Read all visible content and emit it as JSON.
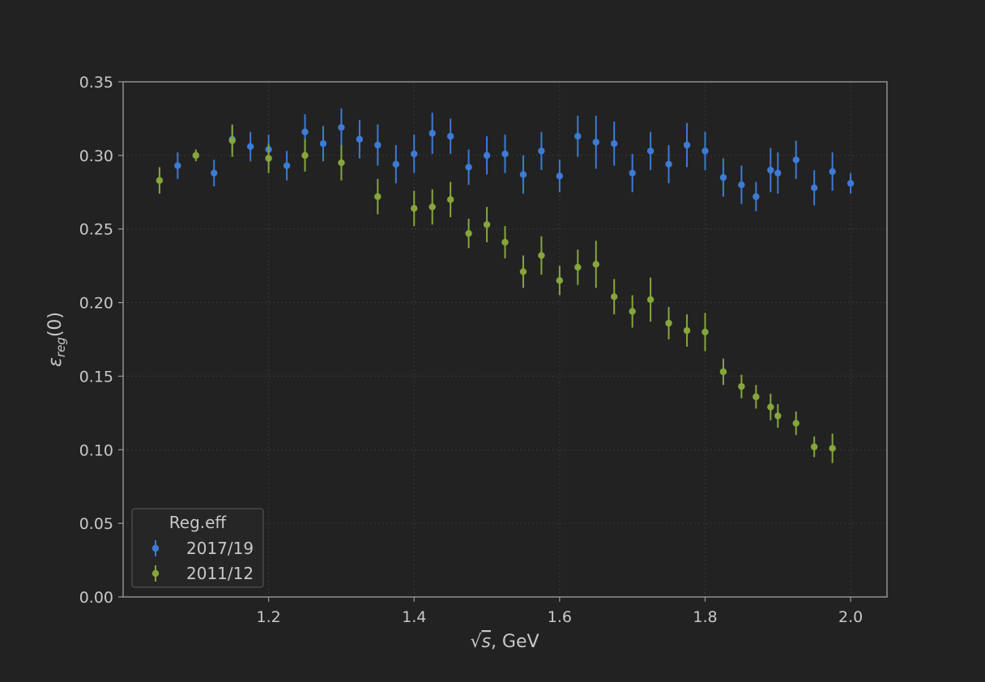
{
  "chart_data": {
    "type": "scatter",
    "title": "",
    "xlabel_prefix": "√",
    "xlabel_var": "s",
    "xlabel_suffix": ", GeV",
    "ylabel_main": "ε",
    "ylabel_sub": "reg",
    "ylabel_suffix": "(0)",
    "xlim": [
      1.0,
      2.05
    ],
    "ylim": [
      0.0,
      0.35
    ],
    "xticks": [
      "1.2",
      "1.4",
      "1.6",
      "1.8",
      "2.0"
    ],
    "yticks": [
      "0.00",
      "0.05",
      "0.10",
      "0.15",
      "0.20",
      "0.25",
      "0.30",
      "0.35"
    ],
    "grid": true,
    "legend": {
      "title": "Reg.eff",
      "placement": "lower-left"
    },
    "series": [
      {
        "name": "2017/19",
        "color": "#3d7bd4",
        "points": [
          {
            "x": 1.075,
            "y": 0.293,
            "err": 0.009
          },
          {
            "x": 1.125,
            "y": 0.288,
            "err": 0.009
          },
          {
            "x": 1.15,
            "y": 0.311,
            "err": 0.009
          },
          {
            "x": 1.175,
            "y": 0.306,
            "err": 0.01
          },
          {
            "x": 1.2,
            "y": 0.304,
            "err": 0.01
          },
          {
            "x": 1.225,
            "y": 0.293,
            "err": 0.01
          },
          {
            "x": 1.25,
            "y": 0.316,
            "err": 0.012
          },
          {
            "x": 1.275,
            "y": 0.308,
            "err": 0.012
          },
          {
            "x": 1.3,
            "y": 0.319,
            "err": 0.013
          },
          {
            "x": 1.325,
            "y": 0.311,
            "err": 0.013
          },
          {
            "x": 1.35,
            "y": 0.307,
            "err": 0.014
          },
          {
            "x": 1.375,
            "y": 0.294,
            "err": 0.013
          },
          {
            "x": 1.4,
            "y": 0.301,
            "err": 0.013
          },
          {
            "x": 1.425,
            "y": 0.315,
            "err": 0.014
          },
          {
            "x": 1.45,
            "y": 0.313,
            "err": 0.012
          },
          {
            "x": 1.475,
            "y": 0.292,
            "err": 0.012
          },
          {
            "x": 1.5,
            "y": 0.3,
            "err": 0.013
          },
          {
            "x": 1.525,
            "y": 0.301,
            "err": 0.013
          },
          {
            "x": 1.55,
            "y": 0.287,
            "err": 0.013
          },
          {
            "x": 1.575,
            "y": 0.303,
            "err": 0.013
          },
          {
            "x": 1.6,
            "y": 0.286,
            "err": 0.011
          },
          {
            "x": 1.625,
            "y": 0.313,
            "err": 0.014
          },
          {
            "x": 1.65,
            "y": 0.309,
            "err": 0.018
          },
          {
            "x": 1.675,
            "y": 0.308,
            "err": 0.015
          },
          {
            "x": 1.7,
            "y": 0.288,
            "err": 0.013
          },
          {
            "x": 1.725,
            "y": 0.303,
            "err": 0.013
          },
          {
            "x": 1.75,
            "y": 0.294,
            "err": 0.013
          },
          {
            "x": 1.775,
            "y": 0.307,
            "err": 0.015
          },
          {
            "x": 1.8,
            "y": 0.303,
            "err": 0.013
          },
          {
            "x": 1.825,
            "y": 0.285,
            "err": 0.013
          },
          {
            "x": 1.85,
            "y": 0.28,
            "err": 0.013
          },
          {
            "x": 1.87,
            "y": 0.272,
            "err": 0.01
          },
          {
            "x": 1.89,
            "y": 0.29,
            "err": 0.015
          },
          {
            "x": 1.9,
            "y": 0.288,
            "err": 0.014
          },
          {
            "x": 1.925,
            "y": 0.297,
            "err": 0.013
          },
          {
            "x": 1.95,
            "y": 0.278,
            "err": 0.012
          },
          {
            "x": 1.975,
            "y": 0.289,
            "err": 0.013
          },
          {
            "x": 2.0,
            "y": 0.281,
            "err": 0.007
          }
        ]
      },
      {
        "name": "2011/12",
        "color": "#86a63c",
        "points": [
          {
            "x": 1.05,
            "y": 0.283,
            "err": 0.009
          },
          {
            "x": 1.1,
            "y": 0.3,
            "err": 0.004
          },
          {
            "x": 1.15,
            "y": 0.31,
            "err": 0.011
          },
          {
            "x": 1.2,
            "y": 0.298,
            "err": 0.01
          },
          {
            "x": 1.25,
            "y": 0.3,
            "err": 0.011
          },
          {
            "x": 1.3,
            "y": 0.295,
            "err": 0.012
          },
          {
            "x": 1.35,
            "y": 0.272,
            "err": 0.012
          },
          {
            "x": 1.4,
            "y": 0.264,
            "err": 0.012
          },
          {
            "x": 1.425,
            "y": 0.265,
            "err": 0.012
          },
          {
            "x": 1.45,
            "y": 0.27,
            "err": 0.012
          },
          {
            "x": 1.475,
            "y": 0.247,
            "err": 0.01
          },
          {
            "x": 1.5,
            "y": 0.253,
            "err": 0.012
          },
          {
            "x": 1.525,
            "y": 0.241,
            "err": 0.011
          },
          {
            "x": 1.55,
            "y": 0.221,
            "err": 0.011
          },
          {
            "x": 1.575,
            "y": 0.232,
            "err": 0.013
          },
          {
            "x": 1.6,
            "y": 0.215,
            "err": 0.01
          },
          {
            "x": 1.625,
            "y": 0.224,
            "err": 0.012
          },
          {
            "x": 1.65,
            "y": 0.226,
            "err": 0.016
          },
          {
            "x": 1.675,
            "y": 0.204,
            "err": 0.012
          },
          {
            "x": 1.7,
            "y": 0.194,
            "err": 0.011
          },
          {
            "x": 1.725,
            "y": 0.202,
            "err": 0.015
          },
          {
            "x": 1.75,
            "y": 0.186,
            "err": 0.011
          },
          {
            "x": 1.775,
            "y": 0.181,
            "err": 0.011
          },
          {
            "x": 1.8,
            "y": 0.18,
            "err": 0.013
          },
          {
            "x": 1.825,
            "y": 0.153,
            "err": 0.009
          },
          {
            "x": 1.85,
            "y": 0.143,
            "err": 0.008
          },
          {
            "x": 1.87,
            "y": 0.136,
            "err": 0.008
          },
          {
            "x": 1.89,
            "y": 0.129,
            "err": 0.009
          },
          {
            "x": 1.9,
            "y": 0.123,
            "err": 0.008
          },
          {
            "x": 1.925,
            "y": 0.118,
            "err": 0.008
          },
          {
            "x": 1.95,
            "y": 0.102,
            "err": 0.007
          },
          {
            "x": 1.975,
            "y": 0.101,
            "err": 0.01
          }
        ]
      }
    ]
  }
}
